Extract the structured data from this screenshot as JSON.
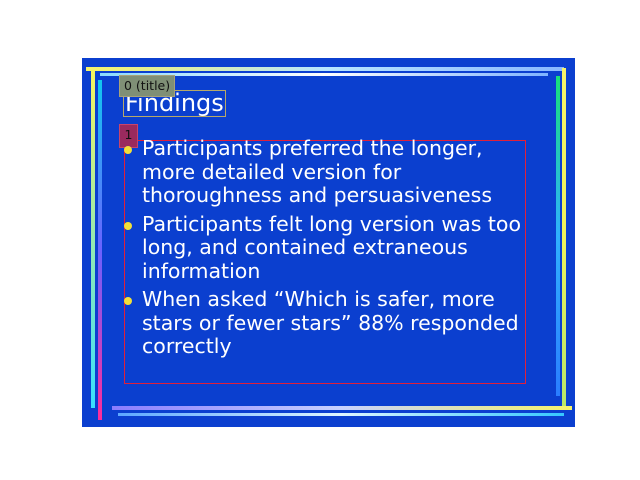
{
  "slide": {
    "title": "Findings",
    "bullets": [
      "Participants preferred the longer, more detailed version for thoroughness and persuasiveness",
      "Participants felt long version was too long, and contained extraneous information",
      "When asked “Which is safer, more stars or fewer stars” 88% responded correctly"
    ]
  },
  "overlay_labels": {
    "title_tag": "0 (title)",
    "body_tag": "1"
  },
  "colors": {
    "slide_background": "#0b3fcf",
    "bullet_dot": "#f2e03a",
    "title_box_border": "#b6a96a",
    "body_box_border": "#e0203a",
    "title_tag_background": "#7f8f76",
    "body_tag_background": "#9a2a5e"
  }
}
